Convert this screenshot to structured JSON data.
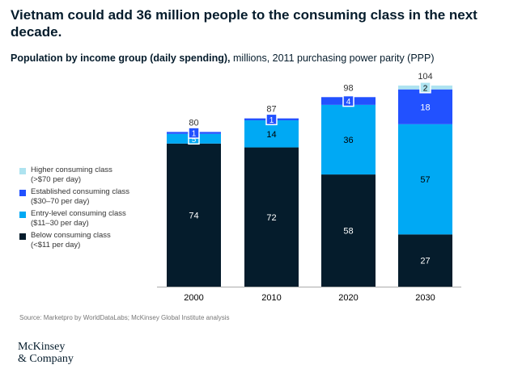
{
  "title": "Vietnam could add 36 million people to the consuming class in the next decade.",
  "subtitle": {
    "bold": "Population by income group (daily spending),",
    "rest": " millions, 2011 purchasing power parity (PPP)"
  },
  "legend": [
    {
      "name": "Higher consuming class",
      "detail": "(>$70 per day)",
      "color": "#aee3f0"
    },
    {
      "name": "Established consuming class",
      "detail": "($30–70 per day)",
      "color": "#2251ff"
    },
    {
      "name": "Entry-level consuming class",
      "detail": "($11–30 per day)",
      "color": "#00a9f4"
    },
    {
      "name": "Below consuming class",
      "detail": "(<$11 per day)",
      "color": "#051c2c"
    }
  ],
  "chart_data": {
    "type": "bar",
    "stacked": true,
    "categories": [
      "2000",
      "2010",
      "2020",
      "2030"
    ],
    "series": [
      {
        "name": "Below consuming class",
        "color": "#051c2c",
        "values": [
          74,
          72,
          58,
          27
        ]
      },
      {
        "name": "Entry-level consuming class",
        "color": "#00a9f4",
        "values": [
          5,
          14,
          36,
          57
        ]
      },
      {
        "name": "Established consuming class",
        "color": "#2251ff",
        "values": [
          1,
          1,
          4,
          18
        ]
      },
      {
        "name": "Higher consuming class",
        "color": "#aee3f0",
        "values": [
          0,
          0,
          0,
          2
        ]
      }
    ],
    "totals": [
      80,
      87,
      98,
      104
    ],
    "ylim": [
      0,
      104
    ]
  },
  "source": "Source: Marketpro by WorldDataLabs; McKinsey Global Institute analysis",
  "logo": {
    "line1": "McKinsey",
    "line2": "& Company"
  }
}
